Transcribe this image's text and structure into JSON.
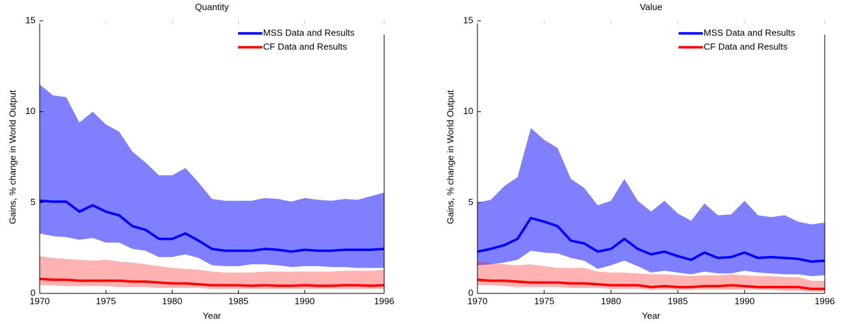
{
  "chart_data": [
    {
      "type": "band-line",
      "title": "Quantity",
      "x_label": "Year",
      "y_label": "Gains, % change in World Output",
      "x": [
        1970,
        1971,
        1972,
        1973,
        1974,
        1975,
        1976,
        1977,
        1978,
        1979,
        1980,
        1981,
        1982,
        1983,
        1984,
        1985,
        1986,
        1987,
        1988,
        1989,
        1990,
        1991,
        1992,
        1993,
        1994,
        1995,
        1996
      ],
      "xlim": [
        1970,
        1996
      ],
      "xticks": [
        1970,
        1975,
        1980,
        1985,
        1990,
        1996
      ],
      "ylim": [
        0,
        15
      ],
      "yticks": [
        0,
        5,
        10,
        15
      ],
      "legend": "upper right",
      "series": [
        {
          "name": "MSS Data and Results",
          "color": "#0000ff",
          "band_color": "#8080ff",
          "band_opacity": 1,
          "values": [
            5.1,
            5.05,
            5.05,
            4.5,
            4.85,
            4.5,
            4.3,
            3.7,
            3.5,
            3.0,
            3.0,
            3.3,
            2.9,
            2.45,
            2.35,
            2.35,
            2.35,
            2.45,
            2.4,
            2.3,
            2.4,
            2.35,
            2.35,
            2.4,
            2.4,
            2.4,
            2.45
          ],
          "upper": [
            11.5,
            10.9,
            10.8,
            9.4,
            10.0,
            9.3,
            8.9,
            7.8,
            7.2,
            6.5,
            6.5,
            6.9,
            6.1,
            5.2,
            5.1,
            5.1,
            5.1,
            5.25,
            5.2,
            5.05,
            5.25,
            5.15,
            5.1,
            5.2,
            5.15,
            5.35,
            5.55
          ],
          "lower": [
            3.3,
            3.15,
            3.1,
            2.95,
            3.05,
            2.8,
            2.8,
            2.45,
            2.35,
            2.0,
            2.0,
            2.15,
            1.95,
            1.55,
            1.5,
            1.5,
            1.6,
            1.6,
            1.55,
            1.45,
            1.5,
            1.5,
            1.45,
            1.45,
            1.4,
            1.4,
            1.4
          ]
        },
        {
          "name": "CF Data and Results",
          "color": "#ff0000",
          "band_color": "#ff0000",
          "band_opacity": 0.3,
          "values": [
            0.8,
            0.75,
            0.75,
            0.7,
            0.7,
            0.7,
            0.7,
            0.65,
            0.65,
            0.6,
            0.55,
            0.55,
            0.5,
            0.45,
            0.45,
            0.45,
            0.42,
            0.45,
            0.42,
            0.42,
            0.45,
            0.42,
            0.42,
            0.45,
            0.45,
            0.42,
            0.45
          ],
          "upper": [
            2.05,
            1.95,
            1.9,
            1.85,
            1.8,
            1.85,
            1.75,
            1.7,
            1.6,
            1.5,
            1.4,
            1.35,
            1.3,
            1.2,
            1.15,
            1.15,
            1.15,
            1.2,
            1.2,
            1.2,
            1.2,
            1.2,
            1.2,
            1.25,
            1.25,
            1.25,
            1.3
          ],
          "lower": [
            0.45,
            0.45,
            0.4,
            0.4,
            0.4,
            0.4,
            0.35,
            0.35,
            0.35,
            0.3,
            0.3,
            0.3,
            0.3,
            0.25,
            0.25,
            0.25,
            0.25,
            0.25,
            0.25,
            0.25,
            0.25,
            0.25,
            0.25,
            0.25,
            0.25,
            0.25,
            0.25
          ]
        }
      ]
    },
    {
      "type": "band-line",
      "title": "Value",
      "x_label": "Year",
      "y_label": "Gains, % change in World Output",
      "x": [
        1970,
        1971,
        1972,
        1973,
        1974,
        1975,
        1976,
        1977,
        1978,
        1979,
        1980,
        1981,
        1982,
        1983,
        1984,
        1985,
        1986,
        1987,
        1988,
        1989,
        1990,
        1991,
        1992,
        1993,
        1994,
        1995,
        1996
      ],
      "xlim": [
        1970,
        1996
      ],
      "xticks": [
        1970,
        1975,
        1980,
        1985,
        1990,
        1996
      ],
      "ylim": [
        0,
        15
      ],
      "yticks": [
        0,
        5,
        10,
        15
      ],
      "legend": "upper right",
      "series": [
        {
          "name": "MSS Data and Results",
          "color": "#0000ff",
          "band_color": "#8080ff",
          "band_opacity": 1,
          "values": [
            2.3,
            2.45,
            2.65,
            3.0,
            4.15,
            3.95,
            3.7,
            2.9,
            2.75,
            2.3,
            2.45,
            3.0,
            2.45,
            2.15,
            2.3,
            2.05,
            1.85,
            2.25,
            1.95,
            2.0,
            2.25,
            1.95,
            2.0,
            1.95,
            1.9,
            1.75,
            1.8
          ],
          "upper": [
            5.0,
            5.15,
            5.9,
            6.4,
            9.1,
            8.45,
            8.0,
            6.3,
            5.8,
            4.85,
            5.1,
            6.3,
            5.1,
            4.5,
            5.1,
            4.4,
            4.0,
            4.95,
            4.3,
            4.35,
            5.1,
            4.3,
            4.2,
            4.3,
            3.95,
            3.8,
            3.9
          ],
          "lower": [
            1.55,
            1.6,
            1.7,
            1.85,
            2.35,
            2.25,
            2.2,
            1.95,
            1.8,
            1.35,
            1.55,
            1.8,
            1.5,
            1.15,
            1.25,
            1.15,
            1.05,
            1.2,
            1.1,
            1.1,
            1.25,
            1.15,
            1.1,
            1.05,
            1.05,
            0.95,
            1.0
          ]
        },
        {
          "name": "CF Data and Results",
          "color": "#ff0000",
          "band_color": "#ff0000",
          "band_opacity": 0.3,
          "values": [
            0.75,
            0.7,
            0.7,
            0.65,
            0.6,
            0.6,
            0.6,
            0.55,
            0.55,
            0.5,
            0.45,
            0.45,
            0.45,
            0.35,
            0.4,
            0.35,
            0.35,
            0.4,
            0.4,
            0.45,
            0.4,
            0.35,
            0.35,
            0.35,
            0.35,
            0.25,
            0.25
          ],
          "upper": [
            1.75,
            1.65,
            1.6,
            1.55,
            1.6,
            1.5,
            1.4,
            1.4,
            1.4,
            1.2,
            1.15,
            1.15,
            1.1,
            1.05,
            1.05,
            1.0,
            0.95,
            1.0,
            1.0,
            1.05,
            1.0,
            0.95,
            0.95,
            0.9,
            0.9,
            0.7,
            0.7
          ],
          "lower": [
            0.45,
            0.45,
            0.4,
            0.35,
            0.35,
            0.35,
            0.35,
            0.3,
            0.3,
            0.3,
            0.25,
            0.25,
            0.25,
            0.2,
            0.2,
            0.2,
            0.2,
            0.2,
            0.2,
            0.2,
            0.2,
            0.2,
            0.2,
            0.15,
            0.15,
            0.1,
            0.1
          ]
        }
      ]
    }
  ]
}
